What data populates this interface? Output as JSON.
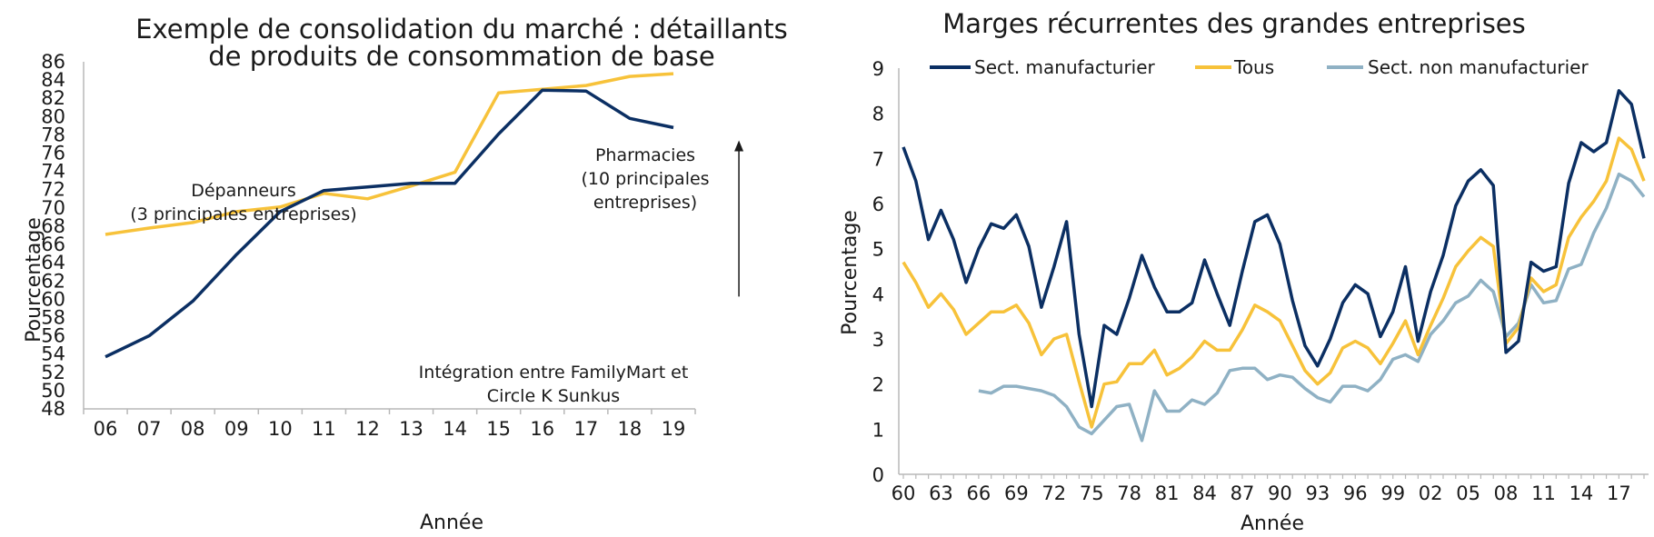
{
  "colors": {
    "navy": "#0b2f63",
    "gold": "#f7c23a",
    "steel": "#8fb1c4",
    "axis": "#b8b8b8",
    "text": "#1a1a1a"
  },
  "chart_data": [
    {
      "type": "line",
      "title_lines": [
        "Exemple de consolidation du marché : détaillants",
        "de produits de consommation de base"
      ],
      "xlabel": "Année",
      "ylabel": "Pourcentage",
      "ylim": [
        48,
        86
      ],
      "y_ticks": [
        48,
        50,
        52,
        54,
        56,
        58,
        60,
        62,
        64,
        66,
        68,
        70,
        72,
        74,
        76,
        78,
        80,
        82,
        84,
        86
      ],
      "categories": [
        "06",
        "07",
        "08",
        "09",
        "10",
        "11",
        "12",
        "13",
        "14",
        "15",
        "16",
        "17",
        "18",
        "19"
      ],
      "series": [
        {
          "name": "Dépanneurs (3 principales entreprises)",
          "color": "navy",
          "values": [
            53.7,
            56.0,
            59.8,
            64.9,
            69.6,
            71.9,
            72.3,
            72.7,
            72.7,
            78.1,
            82.9,
            82.8,
            79.8,
            78.8
          ]
        },
        {
          "name": "Pharmacies (10 principales entreprises)",
          "color": "gold",
          "values": [
            67.1,
            67.8,
            68.4,
            69.6,
            70.1,
            71.6,
            71.0,
            72.4,
            73.9,
            82.6,
            83.0,
            83.4,
            84.4,
            84.7
          ]
        }
      ],
      "annotations": {
        "depanneurs": [
          "Dépanneurs",
          "(3 principales entreprises)"
        ],
        "pharmacies": [
          "Pharmacies",
          "(10 principales",
          "entreprises)"
        ],
        "integration": [
          "Intégration entre FamilyMart et",
          "Circle K Sunkus"
        ],
        "arrow_x": 14.5,
        "arrow_from_y": 60.3,
        "arrow_to_y": 77.4
      }
    },
    {
      "type": "line",
      "title": "Marges récurrentes des grandes entreprises",
      "xlabel": "Année",
      "ylabel": "Pourcentage",
      "ylim": [
        0,
        9
      ],
      "y_ticks": [
        0,
        1,
        2,
        3,
        4,
        5,
        6,
        7,
        8,
        9
      ],
      "x_range": [
        1960,
        2019
      ],
      "x_tick_years": [
        1960,
        1963,
        1966,
        1969,
        1972,
        1975,
        1978,
        1981,
        1984,
        1987,
        1990,
        1993,
        1996,
        1999,
        2002,
        2005,
        2008,
        2011,
        2014,
        2017
      ],
      "x_tick_labels": [
        "60",
        "63",
        "66",
        "69",
        "72",
        "75",
        "78",
        "81",
        "84",
        "87",
        "90",
        "93",
        "96",
        "99",
        "02",
        "05",
        "08",
        "11",
        "14",
        "17"
      ],
      "legend": [
        "Sect. manufacturier",
        "Tous",
        "Sect. non manufacturier"
      ],
      "series": [
        {
          "name": "Sect. manufacturier",
          "color": "navy",
          "x_start": 1960,
          "values": [
            7.25,
            6.5,
            5.2,
            5.85,
            5.2,
            4.25,
            5.0,
            5.55,
            5.45,
            5.75,
            5.05,
            3.7,
            4.6,
            5.6,
            3.1,
            1.5,
            3.3,
            3.1,
            3.9,
            4.85,
            4.15,
            3.6,
            3.6,
            3.8,
            4.75,
            4.0,
            3.3,
            4.5,
            5.6,
            5.75,
            5.1,
            3.85,
            2.85,
            2.4,
            3.0,
            3.8,
            4.2,
            4.0,
            3.05,
            3.6,
            4.6,
            2.95,
            4.05,
            4.85,
            5.95,
            6.5,
            6.75,
            6.4,
            2.7,
            2.95,
            4.7,
            4.5,
            4.6,
            6.45,
            7.35,
            7.15,
            7.35,
            8.5,
            8.2,
            7.0
          ]
        },
        {
          "name": "Tous",
          "color": "gold",
          "x_start": 1960,
          "values": [
            4.7,
            4.25,
            3.7,
            4.0,
            3.65,
            3.1,
            3.35,
            3.6,
            3.6,
            3.75,
            3.35,
            2.65,
            3.0,
            3.1,
            2.05,
            1.05,
            2.0,
            2.05,
            2.45,
            2.45,
            2.75,
            2.2,
            2.35,
            2.6,
            2.95,
            2.75,
            2.75,
            3.2,
            3.75,
            3.6,
            3.4,
            2.85,
            2.3,
            2.0,
            2.25,
            2.8,
            2.95,
            2.8,
            2.45,
            2.9,
            3.4,
            2.65,
            3.3,
            3.9,
            4.6,
            4.95,
            5.25,
            5.05,
            2.9,
            3.25,
            4.35,
            4.05,
            4.2,
            5.25,
            5.7,
            6.05,
            6.5,
            7.45,
            7.2,
            6.5
          ]
        },
        {
          "name": "Sect. non manufacturier",
          "color": "steel",
          "x_start": 1966,
          "values": [
            1.85,
            1.8,
            1.95,
            1.95,
            1.9,
            1.85,
            1.75,
            1.5,
            1.05,
            0.9,
            1.2,
            1.5,
            1.55,
            0.75,
            1.85,
            1.4,
            1.4,
            1.65,
            1.55,
            1.8,
            2.3,
            2.35,
            2.35,
            2.1,
            2.2,
            2.15,
            1.9,
            1.7,
            1.6,
            1.95,
            1.95,
            1.85,
            2.1,
            2.55,
            2.65,
            2.5,
            3.1,
            3.4,
            3.8,
            3.95,
            4.3,
            4.05,
            3.05,
            3.35,
            4.2,
            3.8,
            3.85,
            4.55,
            4.65,
            5.35,
            5.9,
            6.65,
            6.5,
            6.15
          ]
        }
      ]
    }
  ]
}
